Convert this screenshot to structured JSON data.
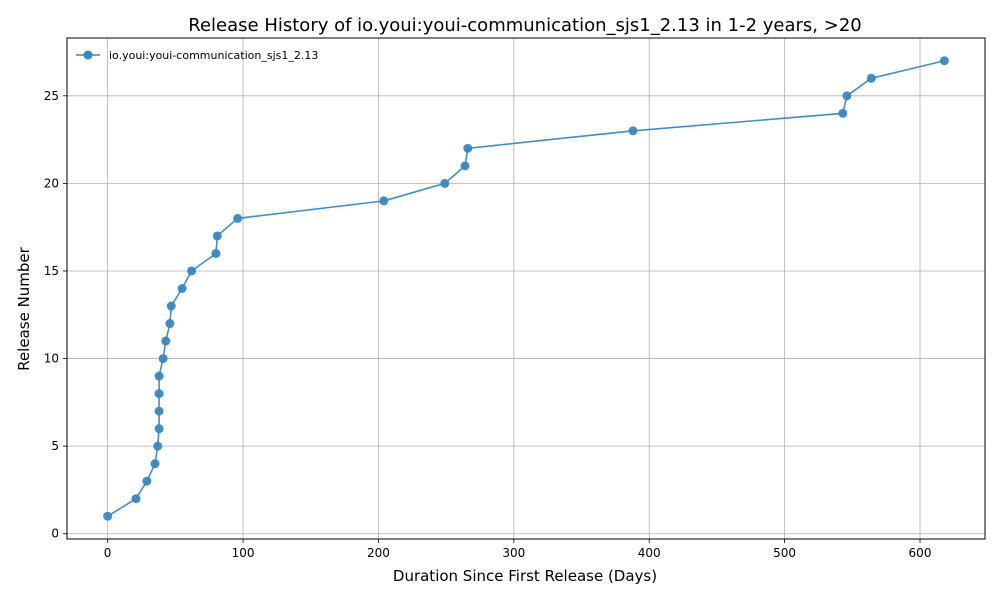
{
  "chart_data": {
    "type": "line",
    "title": "Release History of io.youi:youi-communication_sjs1_2.13 in 1-2 years, >20",
    "xlabel": "Duration Since First Release (Days)",
    "ylabel": "Release Number",
    "xlim": [
      -30,
      648
    ],
    "ylim": [
      -0.3,
      28.3
    ],
    "xticks": [
      0,
      100,
      200,
      300,
      400,
      500,
      600
    ],
    "yticks": [
      0,
      5,
      10,
      15,
      20,
      25
    ],
    "grid": true,
    "legend_position": "top-left",
    "series": [
      {
        "name": "io.youi:youi-communication_sjs1_2.13",
        "color": "#3a87c0",
        "x": [
          0,
          21,
          29,
          35,
          37,
          38,
          38,
          38,
          38,
          41,
          43,
          46,
          47,
          55,
          62,
          80,
          81,
          96,
          204,
          249,
          264,
          266,
          388,
          543,
          546,
          564,
          618
        ],
        "y": [
          1,
          2,
          3,
          4,
          5,
          6,
          7,
          8,
          9,
          10,
          11,
          12,
          13,
          14,
          15,
          16,
          17,
          18,
          19,
          20,
          21,
          22,
          23,
          24,
          25,
          26,
          27
        ]
      }
    ]
  }
}
